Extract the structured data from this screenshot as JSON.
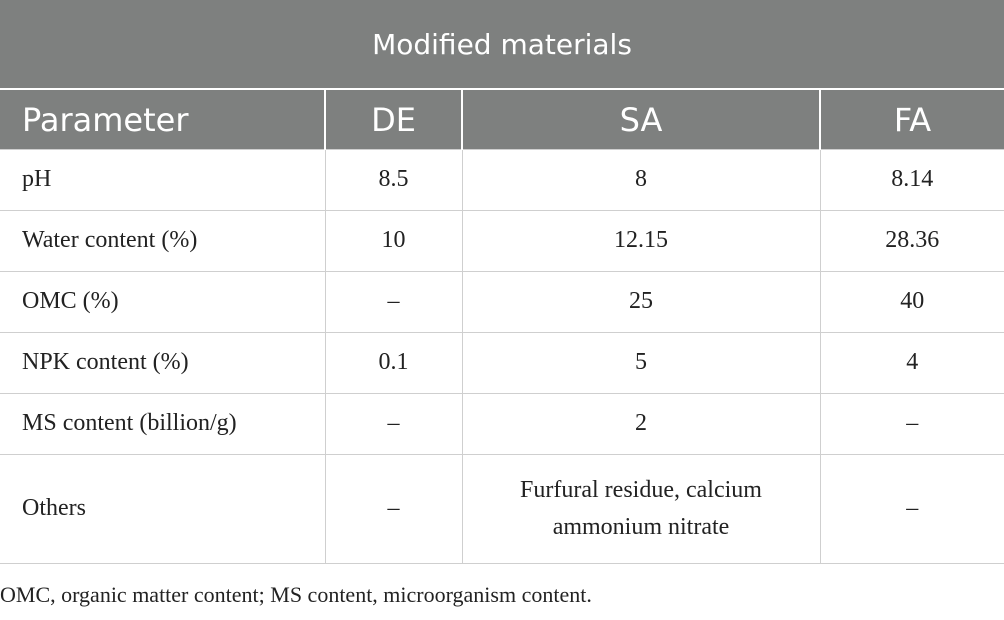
{
  "table": {
    "title": "Modified materials",
    "header": [
      "Parameter",
      "DE",
      "SA",
      "FA"
    ],
    "rows": [
      [
        "pH",
        8.5,
        8,
        8.14
      ],
      [
        "Water content (%)",
        10,
        12.15,
        28.36
      ],
      [
        "OMC (%)",
        "–",
        25,
        40
      ],
      [
        "NPK content (%)",
        0.1,
        5,
        4
      ],
      [
        "MS content (billion/g)",
        "–",
        2,
        "–"
      ],
      [
        "Others",
        "–",
        "Furfural residue, calcium ammonium nitrate",
        "–"
      ]
    ]
  },
  "footnote": "OMC, organic matter content; MS content, microorganism content."
}
